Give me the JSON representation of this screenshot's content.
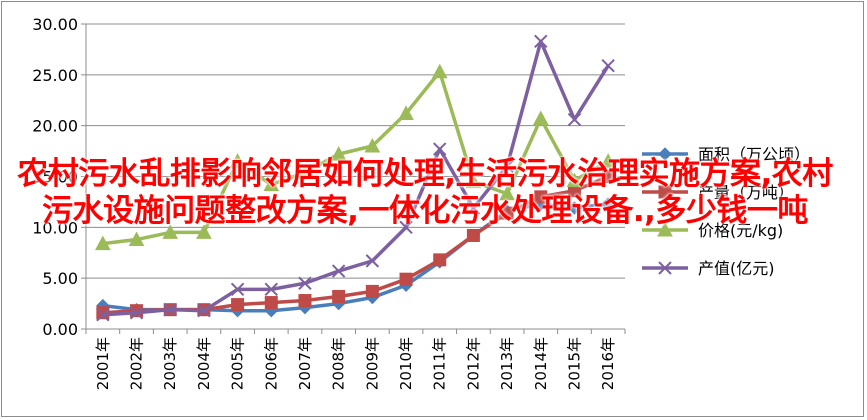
{
  "overlay": {
    "title": "农村污水乱排影响邻居如何处理,生活污水治理实施方案,农村污水设施问题整改方案,一体化污水处理设备.,多少钱一吨"
  },
  "chart_data": {
    "type": "line",
    "title": "",
    "xlabel": "",
    "ylabel": "",
    "ylim": [
      0,
      30
    ],
    "yticks": [
      "0.00",
      "5.00",
      "10.00",
      "15.00",
      "20.00",
      "25.00",
      "30.00"
    ],
    "grid": true,
    "legend_position": "right",
    "categories": [
      "2001年",
      "2002年",
      "2003年",
      "2004年",
      "2005年",
      "2006年",
      "2007年",
      "2008年",
      "2009年",
      "2010年",
      "2011年",
      "2012年",
      "2013年",
      "2014年",
      "2015年",
      "2016年"
    ],
    "series": [
      {
        "name": "面积（万公顷）",
        "color": "#4a7ebb",
        "marker": "diamond",
        "values": [
          2.3,
          1.9,
          1.9,
          1.9,
          1.8,
          1.8,
          2.1,
          2.5,
          3.1,
          4.3,
          6.6,
          9.2,
          11.6,
          12.3,
          11.9,
          12.3
        ]
      },
      {
        "name": "产量（万吨）",
        "color": "#be4b48",
        "marker": "square",
        "values": [
          1.6,
          1.8,
          1.9,
          1.9,
          2.4,
          2.6,
          2.8,
          3.2,
          3.7,
          4.9,
          6.8,
          9.2,
          11.4,
          13.0,
          13.6,
          15.0
        ]
      },
      {
        "name": "价格(元/kg)",
        "color": "#9bbb59",
        "marker": "triangle",
        "values": [
          8.4,
          8.8,
          9.5,
          9.5,
          16.5,
          14.2,
          15.4,
          17.2,
          18.0,
          21.2,
          25.3,
          14.5,
          13.3,
          20.7,
          14.6,
          16.5
        ]
      },
      {
        "name": "产值(亿元)",
        "color": "#7d60a0",
        "marker": "x",
        "values": [
          1.4,
          1.6,
          1.9,
          1.8,
          3.9,
          3.9,
          4.5,
          5.7,
          6.7,
          10.0,
          17.7,
          11.9,
          16.0,
          28.3,
          20.6,
          25.9
        ]
      }
    ]
  }
}
